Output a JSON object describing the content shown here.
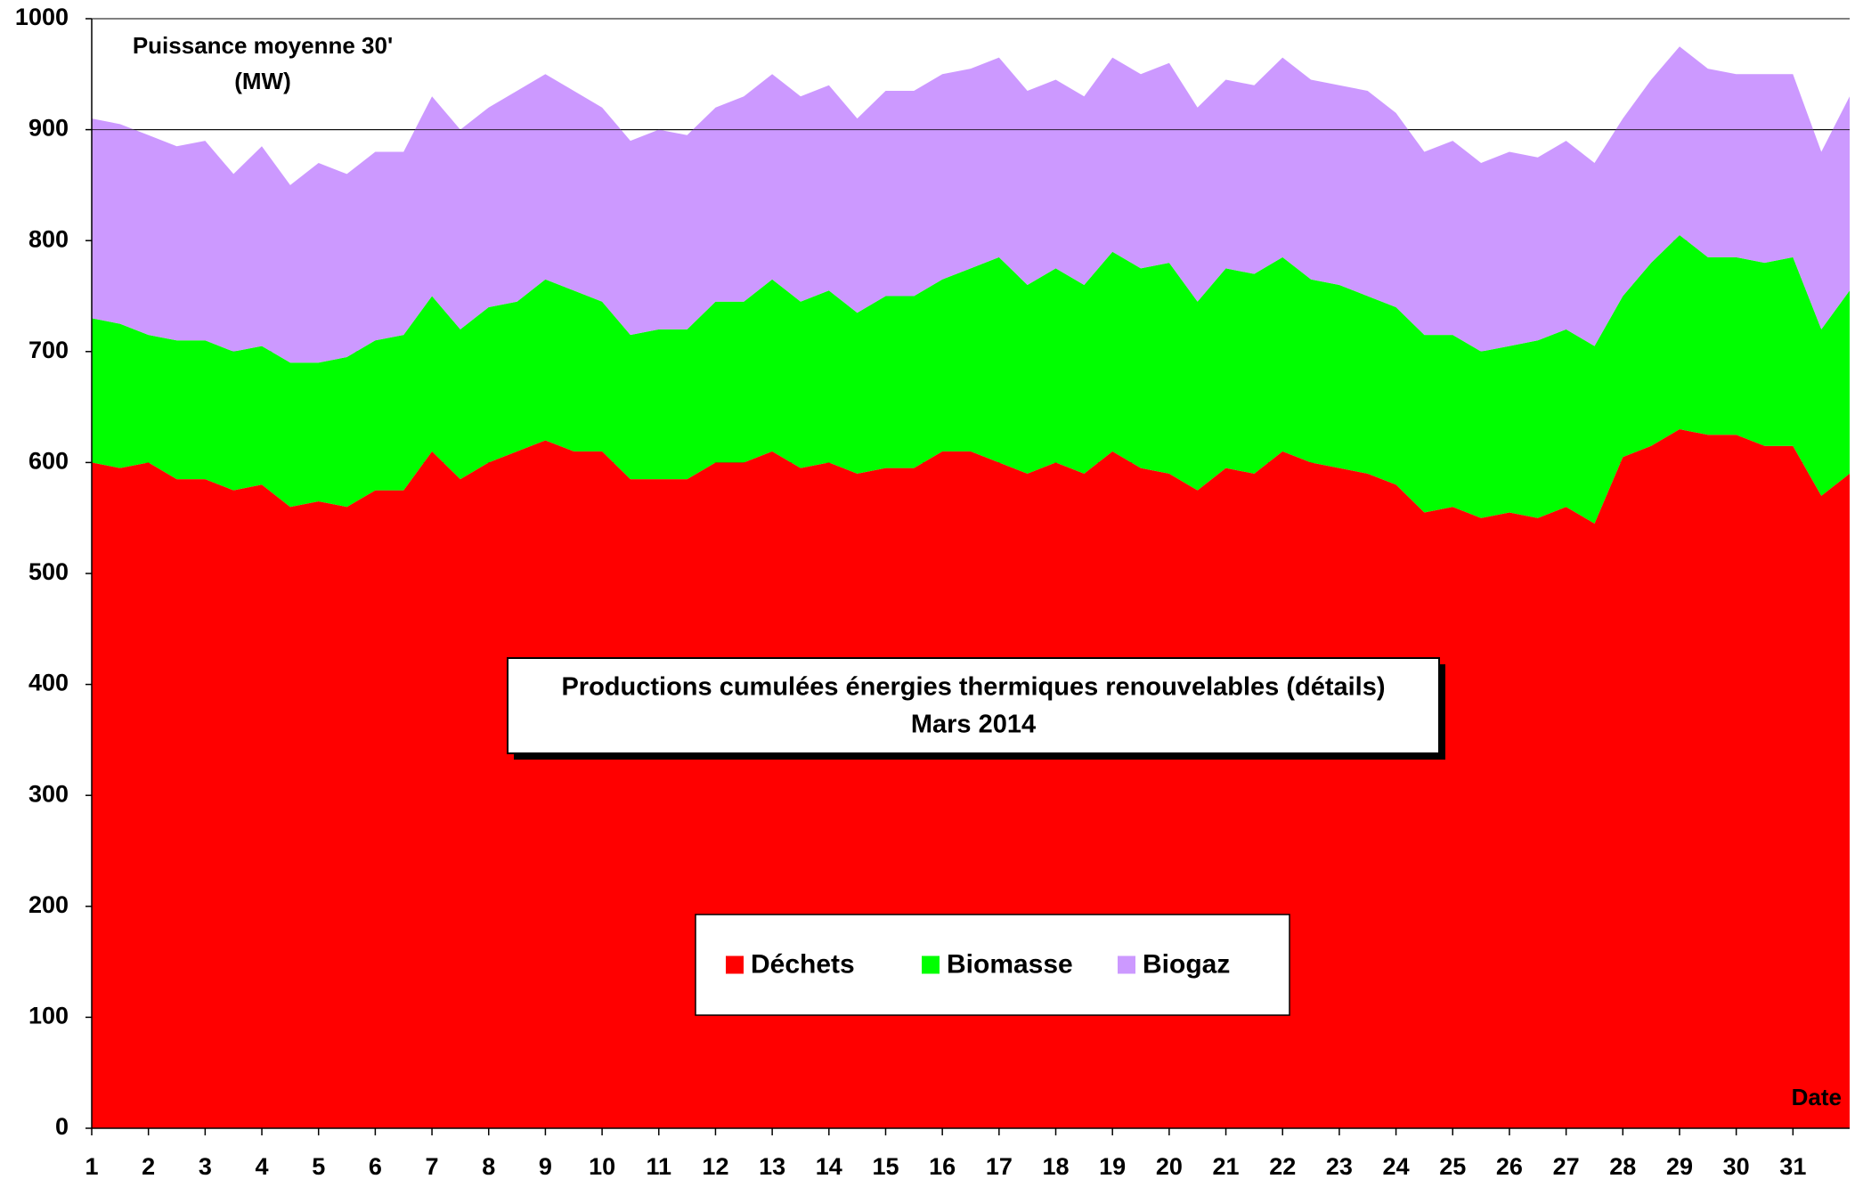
{
  "chart_data": {
    "type": "stacked-area",
    "title": "Productions cumulées énergies thermiques renouvelables (détails)",
    "subtitle": "Mars 2014",
    "ylabel": [
      "Puissance moyenne 30'",
      "(MW)"
    ],
    "xlabel": "Date",
    "x": [
      1,
      1.5,
      2,
      2.5,
      3,
      3.5,
      4,
      4.5,
      5,
      5.5,
      6,
      6.5,
      7,
      7.5,
      8,
      8.5,
      9,
      9.5,
      10,
      10.5,
      11,
      11.5,
      12,
      12.5,
      13,
      13.5,
      14,
      14.5,
      15,
      15.5,
      16,
      16.5,
      17,
      17.5,
      18,
      18.5,
      19,
      19.5,
      20,
      20.5,
      21,
      21.5,
      22,
      22.5,
      23,
      23.5,
      24,
      24.5,
      25,
      25.5,
      26,
      26.5,
      27,
      27.5,
      28,
      28.5,
      29,
      29.5,
      30,
      30.5,
      31,
      31.5,
      32
    ],
    "series": [
      {
        "name": "Déchets",
        "color": "#ff0000",
        "values": [
          600,
          595,
          600,
          585,
          585,
          575,
          580,
          560,
          565,
          560,
          575,
          575,
          610,
          585,
          600,
          610,
          620,
          610,
          610,
          585,
          585,
          585,
          600,
          600,
          610,
          595,
          600,
          590,
          595,
          595,
          610,
          610,
          600,
          590,
          600,
          590,
          610,
          595,
          590,
          575,
          595,
          590,
          610,
          600,
          595,
          590,
          580,
          555,
          560,
          550,
          555,
          550,
          560,
          545,
          605,
          615,
          630,
          625,
          625,
          615,
          615,
          570,
          590
        ]
      },
      {
        "name": "Biomasse",
        "color": "#00ff00",
        "values": [
          130,
          130,
          115,
          125,
          125,
          125,
          125,
          130,
          125,
          135,
          135,
          140,
          140,
          135,
          140,
          135,
          145,
          145,
          135,
          130,
          135,
          135,
          145,
          145,
          155,
          150,
          155,
          145,
          155,
          155,
          155,
          165,
          185,
          170,
          175,
          170,
          180,
          180,
          190,
          170,
          180,
          180,
          175,
          165,
          165,
          160,
          160,
          160,
          155,
          150,
          150,
          160,
          160,
          160,
          145,
          165,
          175,
          160,
          160,
          165,
          170,
          150,
          165
        ]
      },
      {
        "name": "Biogaz",
        "color": "#cc99ff",
        "values": [
          180,
          180,
          180,
          175,
          180,
          160,
          180,
          160,
          180,
          165,
          170,
          165,
          180,
          180,
          180,
          190,
          185,
          180,
          175,
          175,
          180,
          175,
          175,
          185,
          185,
          185,
          185,
          175,
          185,
          185,
          185,
          180,
          180,
          175,
          170,
          170,
          175,
          175,
          180,
          175,
          170,
          170,
          180,
          180,
          180,
          185,
          175,
          165,
          175,
          170,
          175,
          165,
          170,
          165,
          160,
          165,
          170,
          170,
          165,
          170,
          165,
          160,
          175
        ]
      }
    ],
    "xlim": [
      1,
      32
    ],
    "xticks": [
      1,
      2,
      3,
      4,
      5,
      6,
      7,
      8,
      9,
      10,
      11,
      12,
      13,
      14,
      15,
      16,
      17,
      18,
      19,
      20,
      21,
      22,
      23,
      24,
      25,
      26,
      27,
      28,
      29,
      30,
      31
    ],
    "ylim": [
      0,
      1000
    ],
    "yticks": [
      0,
      100,
      200,
      300,
      400,
      500,
      600,
      700,
      800,
      900,
      1000
    ],
    "grid": true,
    "legend": "lower center"
  }
}
